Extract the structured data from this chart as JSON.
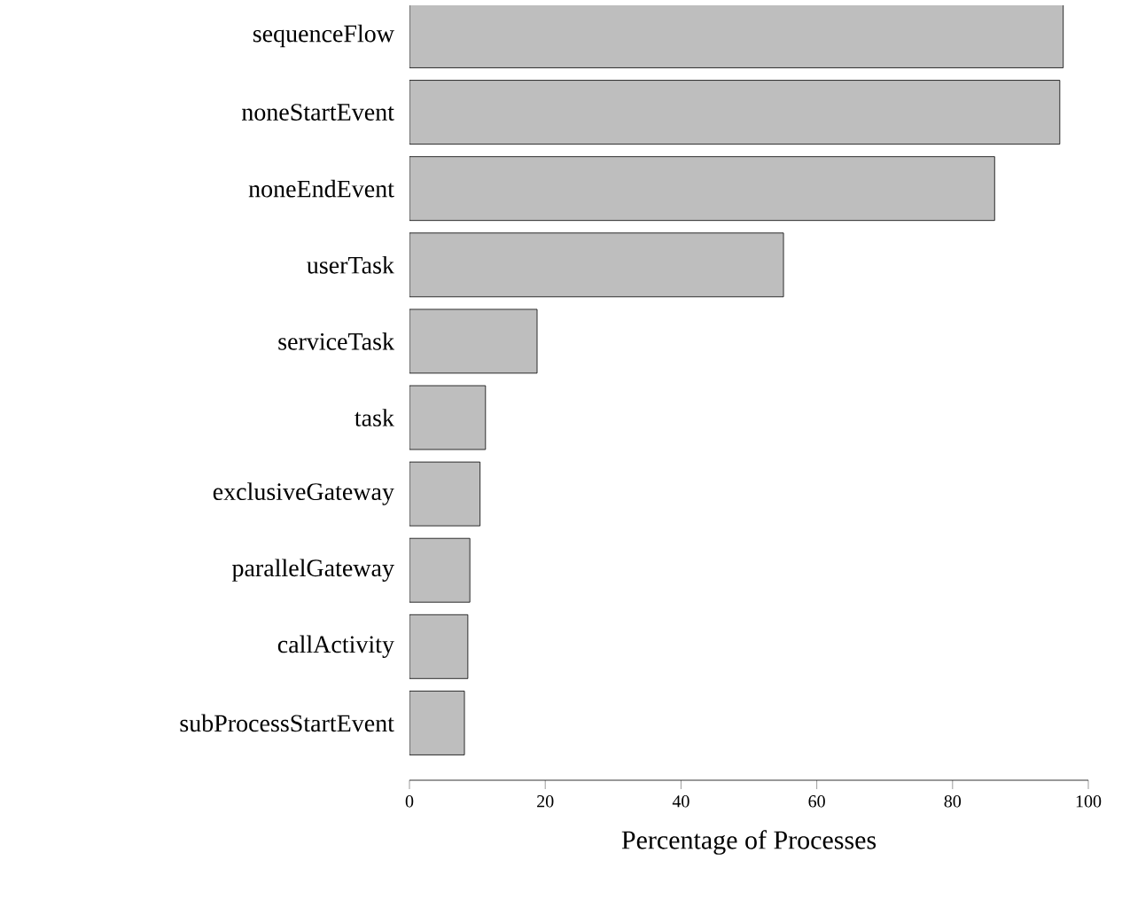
{
  "chart_data": {
    "type": "bar",
    "orientation": "horizontal",
    "xlabel": "Percentage of Processes",
    "categories": [
      "sequenceFlow",
      "noneStartEvent",
      "noneEndEvent",
      "userTask",
      "serviceTask",
      "task",
      "exclusiveGateway",
      "parallelGateway",
      "callActivity",
      "subProcessStartEvent"
    ],
    "values": [
      96.3,
      95.8,
      86.2,
      55.1,
      18.8,
      11.2,
      10.4,
      8.9,
      8.6,
      8.1
    ],
    "color": "#bebebe",
    "xlim": [
      0,
      100
    ],
    "xticks": [
      0,
      20,
      40,
      60,
      80,
      100
    ]
  }
}
